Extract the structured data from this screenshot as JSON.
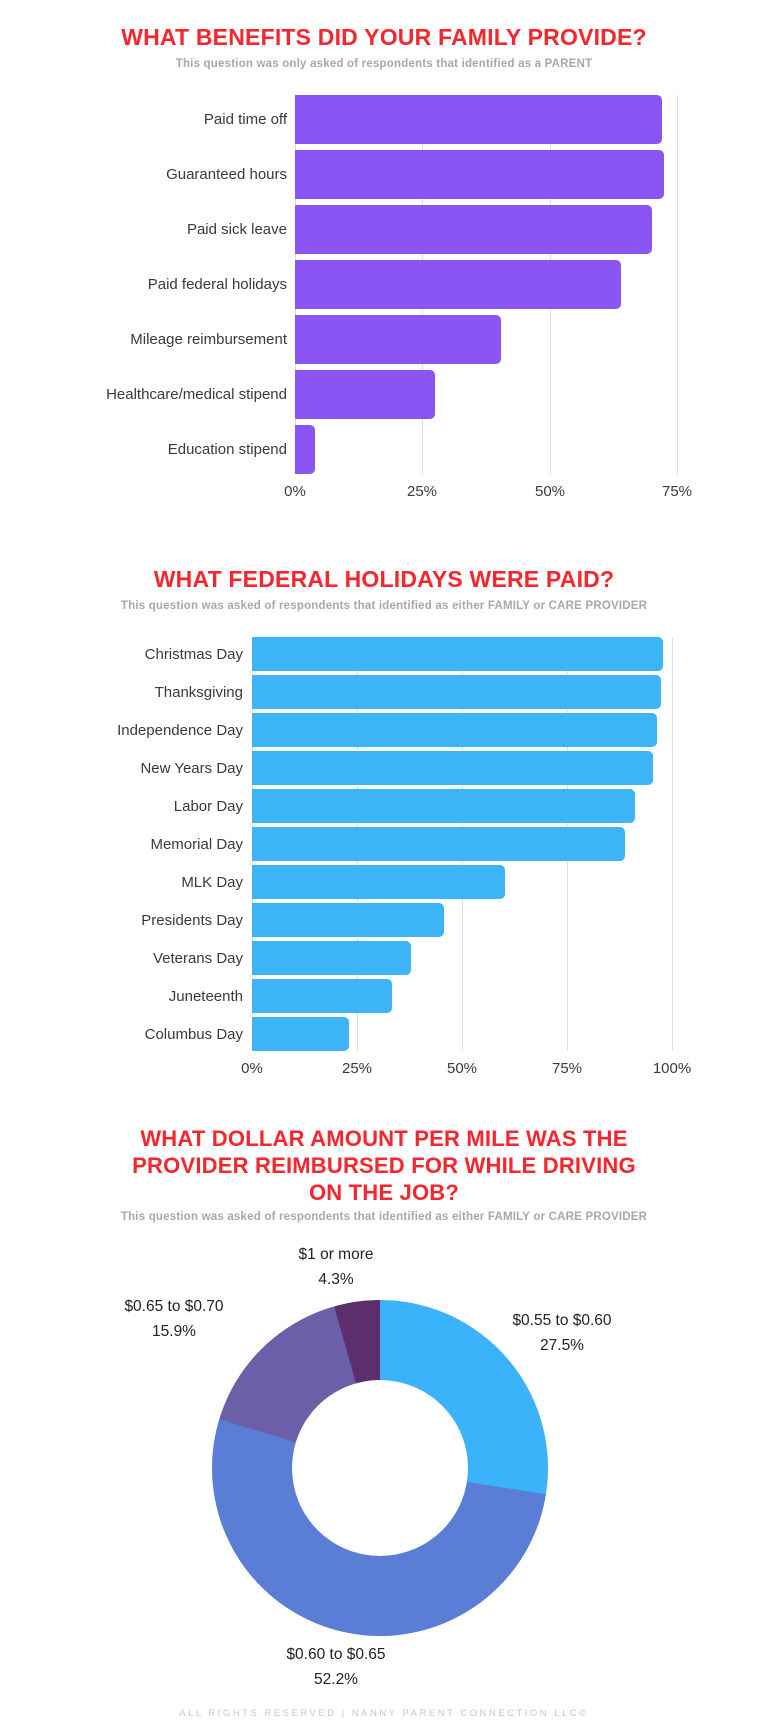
{
  "colors": {
    "title_red": "#F6262E",
    "subtitle_gray": "#A8A8A8",
    "label_dark": "#3A3A3A",
    "grid": "#DEDEDE",
    "purple_bar": "#8B55F3",
    "blue_bar": "#3CB4F5",
    "donut_light_blue": "#3BB3FA",
    "donut_medium_blue": "#5A7ED6",
    "donut_slate_purple": "#6B60A8",
    "donut_plum": "#5D2E6C",
    "footer_gray": "#C6C6C6"
  },
  "chart_data": [
    {
      "type": "bar",
      "orientation": "horizontal",
      "title": "WHAT BENEFITS DID YOUR FAMILY PROVIDE?",
      "subtitle": "This question was only asked of respondents that identified as a PARENT",
      "categories": [
        "Paid time off",
        "Guaranteed hours",
        "Paid sick leave",
        "Paid federal holidays",
        "Mileage reimbursement",
        "Healthcare/medical stipend",
        "Education stipend"
      ],
      "values": [
        72,
        72.3,
        70,
        64,
        40.5,
        27.5,
        4
      ],
      "tick_labels": [
        "0%",
        "25%",
        "50%",
        "75%"
      ],
      "tick_step": 25,
      "axis_max": 77.5,
      "grid": true,
      "bar_color_key": "purple_bar"
    },
    {
      "type": "bar",
      "orientation": "horizontal",
      "title": "WHAT FEDERAL HOLIDAYS WERE PAID?",
      "subtitle": "This question was asked of respondents that identified as either FAMILY or CARE PROVIDER",
      "categories": [
        "Christmas Day",
        "Thanksgiving",
        "Independence Day",
        "New Years Day",
        "Labor Day",
        "Memorial Day",
        "MLK Day",
        "Presidents Day",
        "Veterans Day",
        "Juneteenth",
        "Columbus Day"
      ],
      "values": [
        97.9,
        97.4,
        96.4,
        95.5,
        91.2,
        88.8,
        60.2,
        45.7,
        37.9,
        33.3,
        23.1
      ],
      "tick_labels": [
        "0%",
        "25%",
        "50%",
        "75%",
        "100%"
      ],
      "tick_step": 25,
      "axis_max": 104.3,
      "grid": true,
      "bar_color_key": "blue_bar"
    },
    {
      "type": "donut",
      "title": "WHAT DOLLAR AMOUNT PER MILE WAS THE PROVIDER REIMBURSED FOR WHILE DRIVING ON THE JOB?",
      "subtitle": "This question was asked of respondents that identified as either FAMILY or CARE PROVIDER",
      "slices": [
        {
          "label": "$0.55 to $0.60",
          "pct": 27.5,
          "pct_label": "27.5%",
          "color_key": "donut_light_blue",
          "label_pos": "right"
        },
        {
          "label": "$0.60 to $0.65",
          "pct": 52.2,
          "pct_label": "52.2%",
          "color_key": "donut_medium_blue",
          "label_pos": "bottom"
        },
        {
          "label": "$0.65 to $0.70",
          "pct": 15.9,
          "pct_label": "15.9%",
          "color_key": "donut_slate_purple",
          "label_pos": "left"
        },
        {
          "label": "$1 or more",
          "pct": 4.3,
          "pct_label": "4.3%",
          "color_key": "donut_plum",
          "label_pos": "top"
        }
      ]
    }
  ],
  "footer": {
    "text": "ALL RIGHTS RESERVED | NANNY PARENT CONNECTION LLC©"
  }
}
